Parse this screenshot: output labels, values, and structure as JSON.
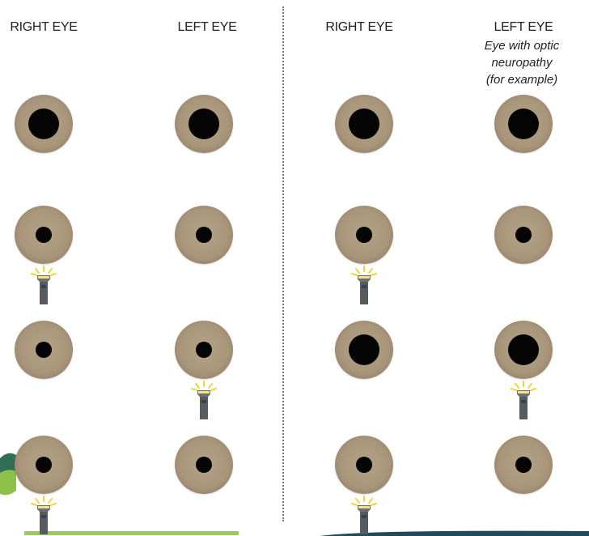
{
  "left_panel": {
    "right_eye_label": "RIGHT EYE",
    "left_eye_label": "LEFT EYE"
  },
  "right_panel": {
    "right_eye_label": "RIGHT EYE",
    "left_eye_label": "LEFT EYE",
    "left_eye_note_line1": "Eye with optic",
    "left_eye_note_line2": "neuropathy",
    "left_eye_note_line3": "(for example)"
  },
  "rows": [
    {
      "step": 1,
      "light_on": "none",
      "left_panel": {
        "right_pupil": "dilated",
        "left_pupil": "dilated"
      },
      "right_panel": {
        "right_pupil": "dilated",
        "left_pupil": "dilated"
      }
    },
    {
      "step": 2,
      "light_on": "right eye",
      "left_panel": {
        "right_pupil": "constricted",
        "left_pupil": "constricted"
      },
      "right_panel": {
        "right_pupil": "constricted",
        "left_pupil": "constricted"
      }
    },
    {
      "step": 3,
      "light_on": "left eye",
      "left_panel": {
        "right_pupil": "constricted",
        "left_pupil": "constricted"
      },
      "right_panel": {
        "right_pupil": "dilated",
        "left_pupil": "dilated"
      }
    },
    {
      "step": 4,
      "light_on": "right eye",
      "left_panel": {
        "right_pupil": "constricted",
        "left_pupil": "constricted"
      },
      "right_panel": {
        "right_pupil": "constricted",
        "left_pupil": "constricted"
      }
    }
  ],
  "colors": {
    "iris": "#a8957a",
    "pupil": "#050505",
    "penlight_body": "#555b60",
    "penlight_glow": "#f2d43a",
    "divider": "#777777"
  }
}
